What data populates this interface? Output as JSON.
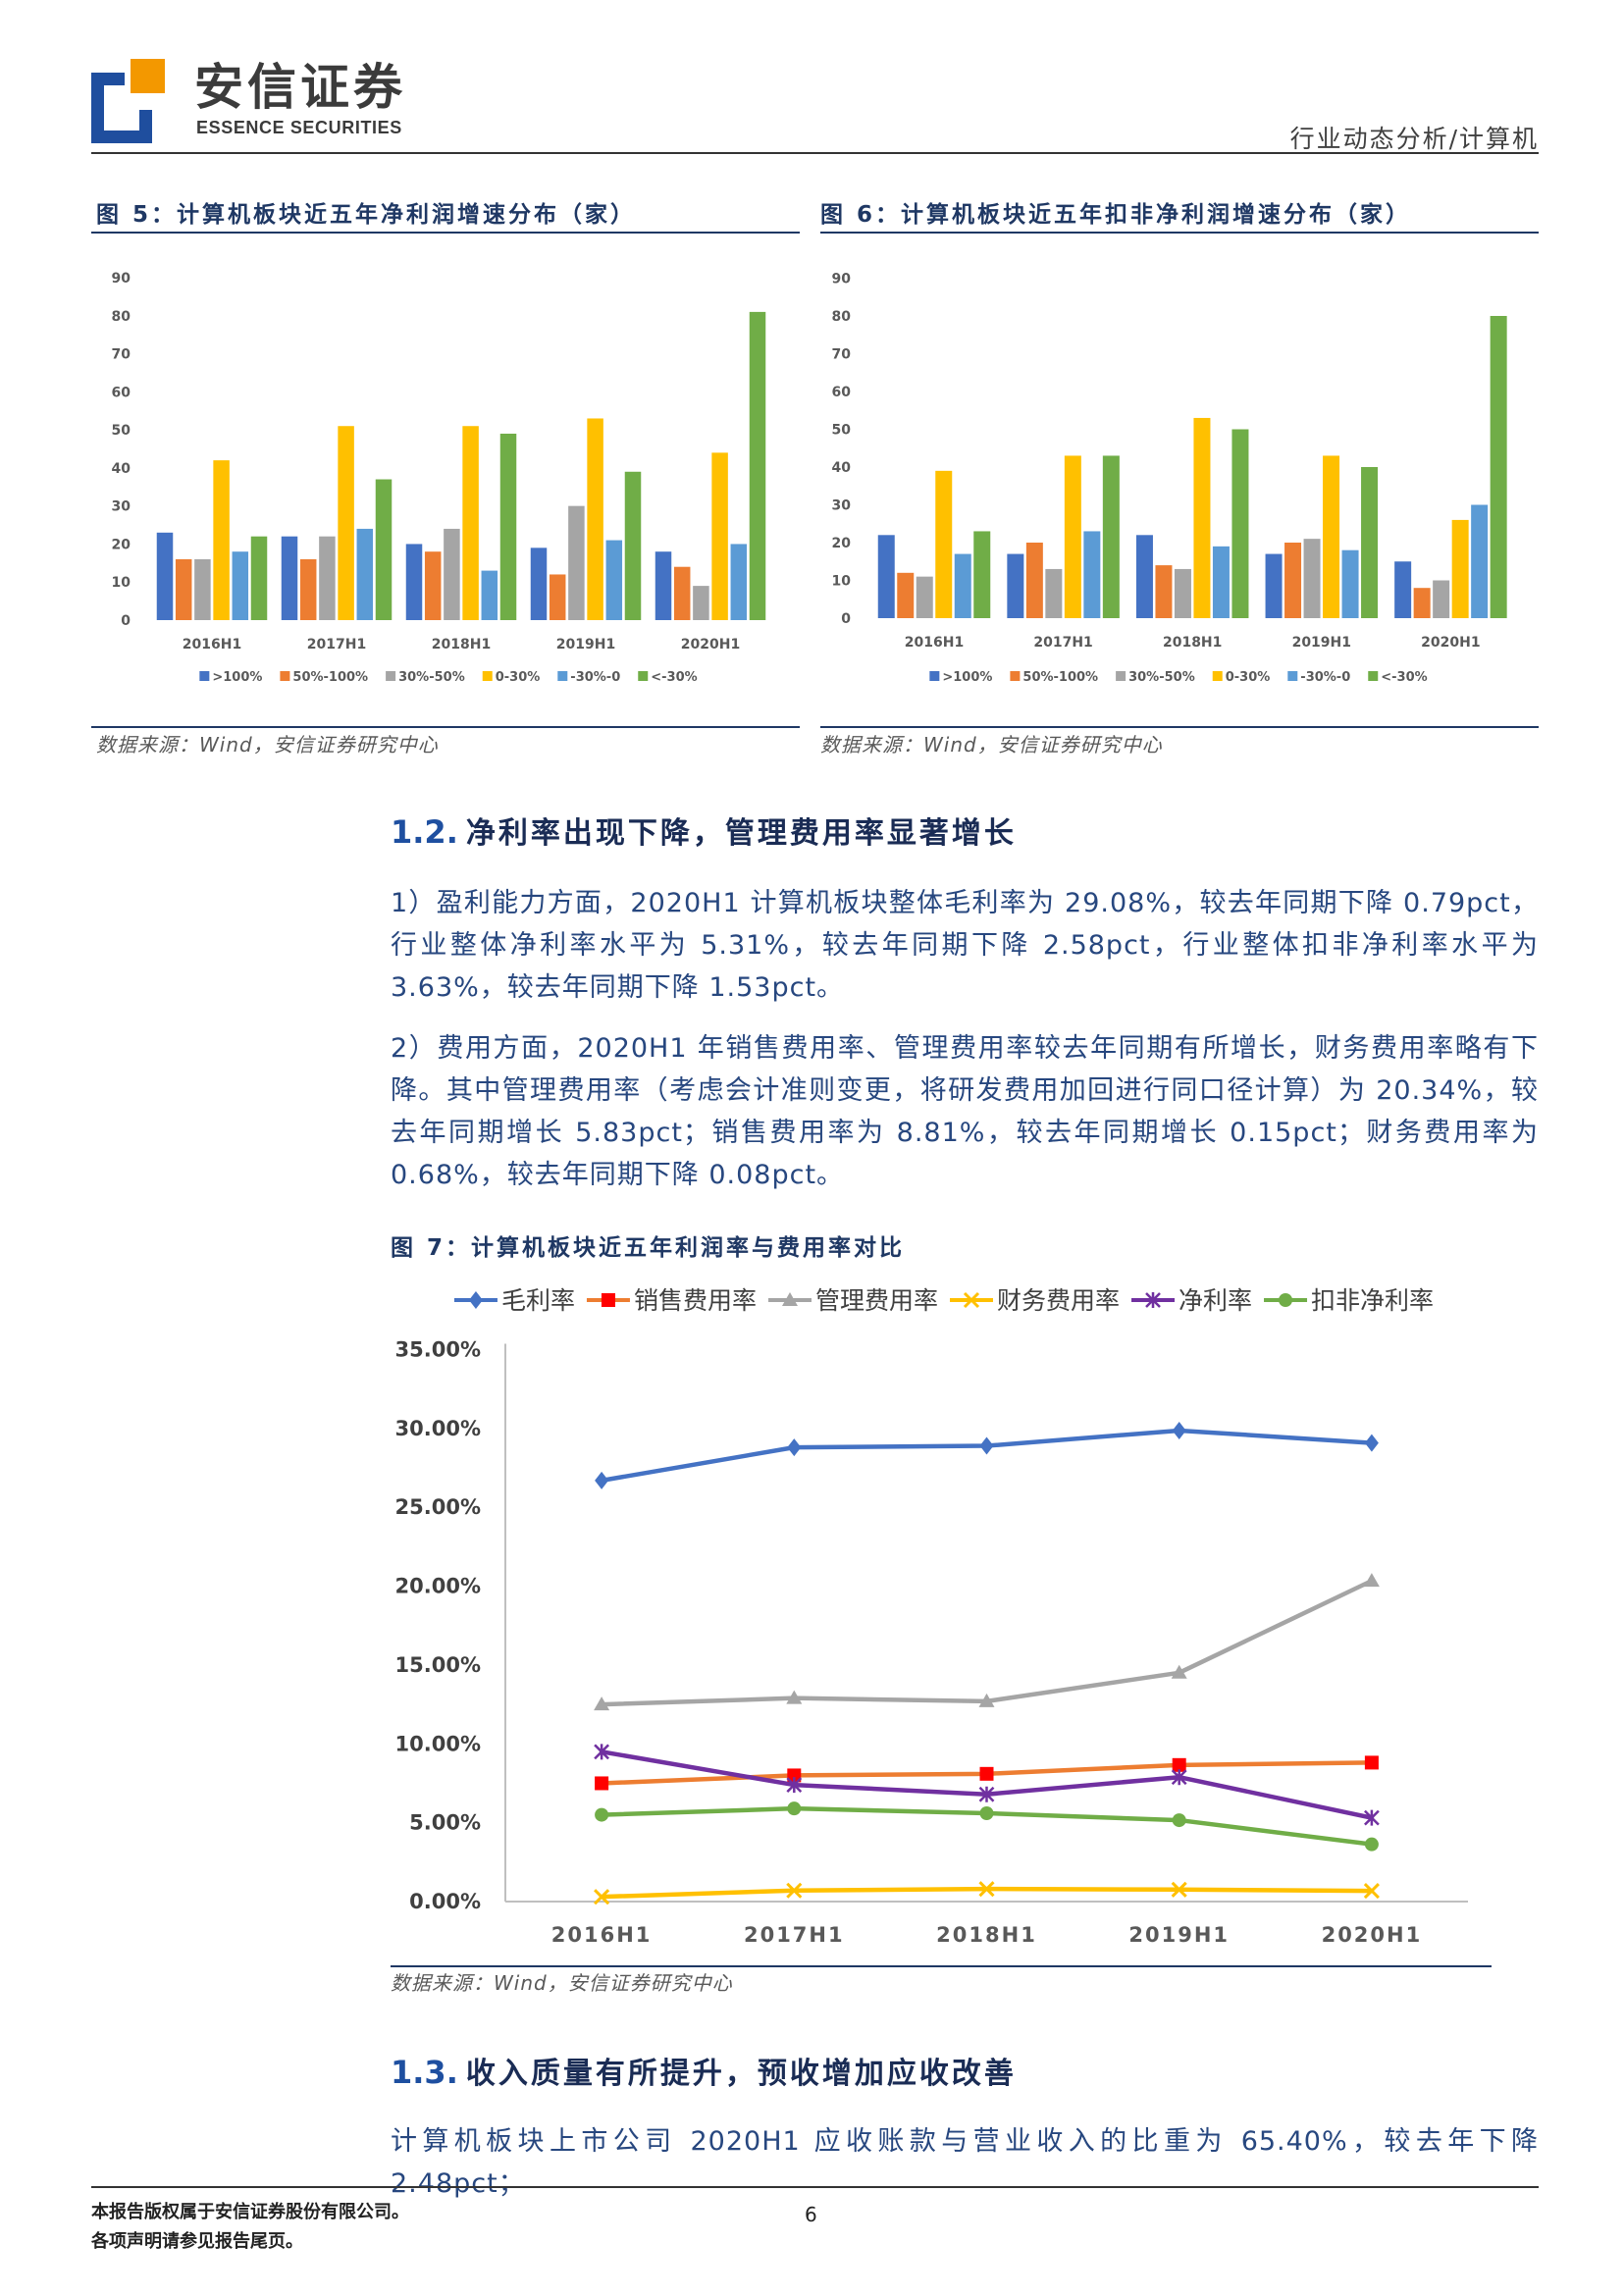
{
  "header": {
    "logo_cn": "安信证券",
    "logo_en": "ESSENCE SECURITIES",
    "report_type": "行业动态分析/计算机"
  },
  "chart_data": [
    {
      "type": "bar",
      "figure_label": "图 5：",
      "title": "计算机板块近五年净利润增速分布（家）",
      "categories": [
        "2016H1",
        "2017H1",
        "2018H1",
        "2019H1",
        "2020H1"
      ],
      "series": [
        {
          "name": ">100%",
          "color": "#4472C4",
          "values": [
            23,
            22,
            20,
            19,
            18
          ]
        },
        {
          "name": "50%-100%",
          "color": "#ED7D31",
          "values": [
            16,
            16,
            18,
            12,
            14
          ]
        },
        {
          "name": "30%-50%",
          "color": "#A5A5A5",
          "values": [
            16,
            22,
            24,
            30,
            9
          ]
        },
        {
          "name": "0-30%",
          "color": "#FFC000",
          "values": [
            42,
            51,
            51,
            53,
            44
          ]
        },
        {
          "name": "-30%-0",
          "color": "#5B9BD5",
          "values": [
            18,
            24,
            13,
            21,
            20
          ]
        },
        {
          "name": "<-30%",
          "color": "#70AD47",
          "values": [
            22,
            37,
            49,
            39,
            81
          ]
        }
      ],
      "ylim": [
        0,
        90
      ],
      "yticks": [
        0,
        10,
        20,
        30,
        40,
        50,
        60,
        70,
        80,
        90
      ],
      "grid": false,
      "legend": "bottom",
      "source": "数据来源：Wind，安信证券研究中心"
    },
    {
      "type": "bar",
      "figure_label": "图 6：",
      "title": "计算机板块近五年扣非净利润增速分布（家）",
      "categories": [
        "2016H1",
        "2017H1",
        "2018H1",
        "2019H1",
        "2020H1"
      ],
      "series": [
        {
          "name": ">100%",
          "color": "#4472C4",
          "values": [
            22,
            17,
            22,
            17,
            15
          ]
        },
        {
          "name": "50%-100%",
          "color": "#ED7D31",
          "values": [
            12,
            20,
            14,
            20,
            8
          ]
        },
        {
          "name": "30%-50%",
          "color": "#A5A5A5",
          "values": [
            11,
            13,
            13,
            21,
            10
          ]
        },
        {
          "name": "0-30%",
          "color": "#FFC000",
          "values": [
            39,
            43,
            53,
            43,
            26
          ]
        },
        {
          "name": "-30%-0",
          "color": "#5B9BD5",
          "values": [
            17,
            23,
            19,
            18,
            30
          ]
        },
        {
          "name": "<-30%",
          "color": "#70AD47",
          "values": [
            23,
            43,
            50,
            40,
            80
          ]
        }
      ],
      "ylim": [
        0,
        90
      ],
      "yticks": [
        0,
        10,
        20,
        30,
        40,
        50,
        60,
        70,
        80,
        90
      ],
      "grid": false,
      "legend": "bottom",
      "source": "数据来源：Wind，安信证券研究中心"
    },
    {
      "type": "line",
      "figure_label": "图 7：",
      "title": "计算机板块近五年利润率与费用率对比",
      "categories": [
        "2016H1",
        "2017H1",
        "2018H1",
        "2019H1",
        "2020H1"
      ],
      "series": [
        {
          "name": "毛利率",
          "color": "#4472C4",
          "marker": "diamond",
          "marker_color": "#4472C4",
          "values": [
            26.7,
            28.8,
            28.9,
            29.87,
            29.08
          ]
        },
        {
          "name": "销售费用率",
          "color": "#ED7D31",
          "marker": "square",
          "marker_color": "#FF0000",
          "values": [
            7.5,
            8.0,
            8.1,
            8.66,
            8.81
          ]
        },
        {
          "name": "管理费用率",
          "color": "#A5A5A5",
          "marker": "triangle",
          "marker_color": "#A5A5A5",
          "values": [
            12.5,
            12.9,
            12.7,
            14.51,
            20.34
          ]
        },
        {
          "name": "财务费用率",
          "color": "#FFC000",
          "marker": "x",
          "marker_color": "#FFC000",
          "values": [
            0.3,
            0.7,
            0.8,
            0.76,
            0.68
          ]
        },
        {
          "name": "净利率",
          "color": "#7030A0",
          "marker": "asterisk",
          "marker_color": "#7030A0",
          "values": [
            9.5,
            7.4,
            6.8,
            7.89,
            5.31
          ]
        },
        {
          "name": "扣非净利率",
          "color": "#70AD47",
          "marker": "circle",
          "marker_color": "#70AD47",
          "values": [
            5.5,
            5.9,
            5.6,
            5.16,
            3.63
          ]
        }
      ],
      "ylim": [
        0,
        35
      ],
      "yticks": [
        0,
        5,
        10,
        15,
        20,
        25,
        30,
        35
      ],
      "ytick_labels": [
        "0.00%",
        "5.00%",
        "10.00%",
        "15.00%",
        "20.00%",
        "25.00%",
        "30.00%",
        "35.00%"
      ],
      "grid": false,
      "legend": "top",
      "source": "数据来源：Wind，安信证券研究中心"
    }
  ],
  "sections": [
    {
      "number": "1.2.",
      "title": "净利率出现下降，管理费用率显著增长",
      "paragraphs": [
        "1）盈利能力方面，2020H1 计算机板块整体毛利率为 29.08%，较去年同期下降 0.79pct，行业整体净利率水平为 5.31%，较去年同期下降 2.58pct，行业整体扣非净利率水平为 3.63%，较去年同期下降 1.53pct。",
        "2）费用方面，2020H1 年销售费用率、管理费用率较去年同期有所增长，财务费用率略有下降。其中管理费用率（考虑会计准则变更，将研发费用加回进行同口径计算）为 20.34%，较去年同期增长 5.83pct；销售费用率为 8.81%，较去年同期增长 0.15pct；财务费用率为 0.68%，较去年同期下降 0.08pct。"
      ]
    },
    {
      "number": "1.3.",
      "title": "收入质量有所提升，预收增加应收改善",
      "paragraphs": [
        "计算机板块上市公司 2020H1 应收账款与营业收入的比重为 65.40%，较去年下降 2.48pct；"
      ]
    }
  ],
  "footer": {
    "copyright": "本报告版权属于安信证券股份有限公司。",
    "disclaimer": "各项声明请参见报告尾页。",
    "page_number": "6"
  }
}
